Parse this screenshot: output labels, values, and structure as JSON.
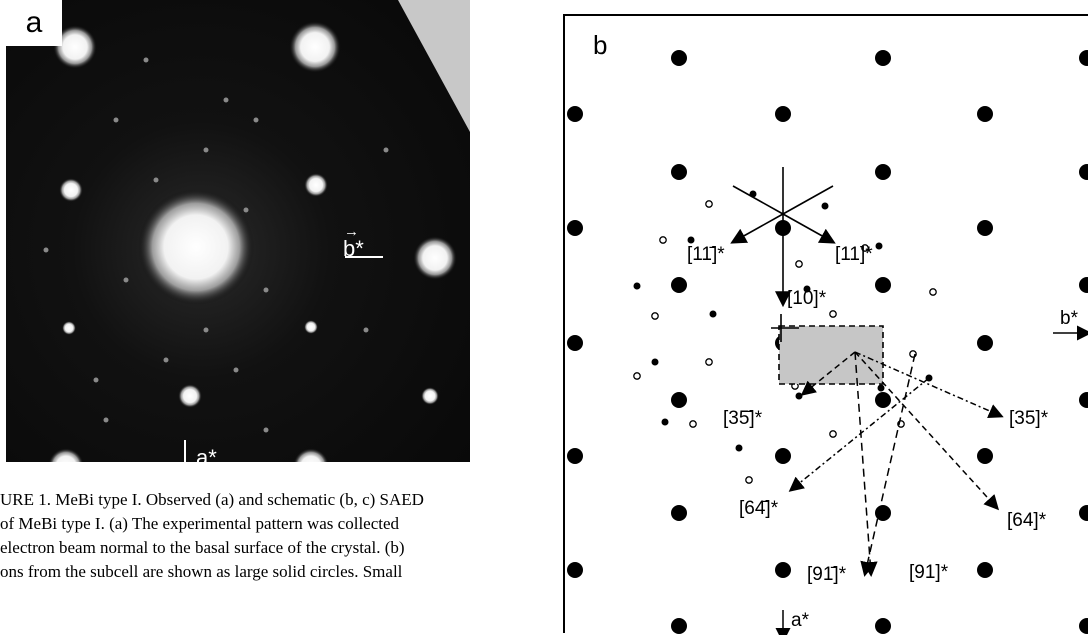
{
  "panel_a": {
    "label": "a",
    "b_star": "b*",
    "a_star": "a*"
  },
  "caption": {
    "lines": [
      "URE 1. MeBi type I. Observed (a) and schematic (b, c) SAED",
      " of MeBi type I. (a) The experimental pattern was collected",
      " electron beam normal to the basal surface of the crystal. (b)",
      "ons from the subcell are shown as large solid circles. Small"
    ]
  },
  "panel_b": {
    "label": "b",
    "b_star": "b*",
    "a_star": "a*",
    "directions": [
      "[11̄]*",
      "[11]*",
      "[10]*",
      "[35̄]*",
      "[35]*",
      "[64̄]*",
      "[64]*",
      "[91̄]*",
      "[91]*"
    ]
  }
}
